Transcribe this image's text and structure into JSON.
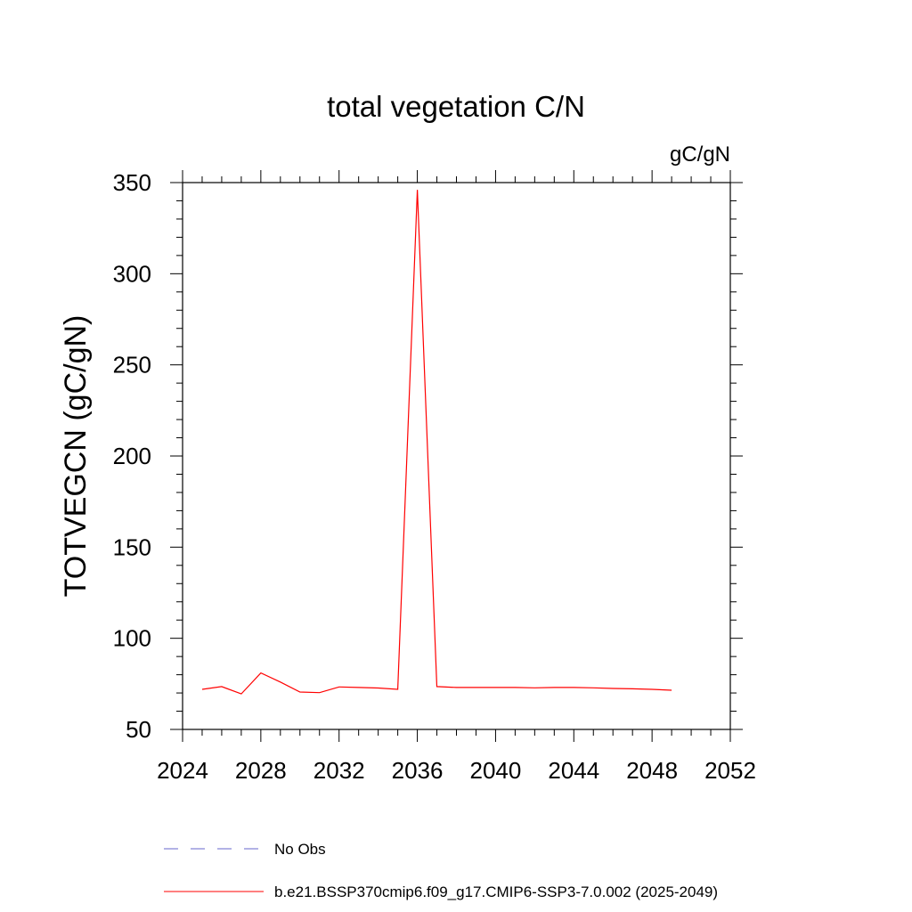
{
  "chart_data": {
    "type": "line",
    "title": "total vegetation C/N",
    "units_label": "gC/gN",
    "ylabel": "TOTVEGCN  (gC/gN)",
    "xlabel": "",
    "xlim": [
      2024,
      2052
    ],
    "ylim": [
      50,
      350
    ],
    "x_ticks": [
      2024,
      2028,
      2032,
      2036,
      2040,
      2044,
      2048,
      2052
    ],
    "y_ticks": [
      50,
      100,
      150,
      200,
      250,
      300,
      350
    ],
    "x_minor_step": 1,
    "y_minor_step": 10,
    "grid": false,
    "legend_position": "bottom",
    "series": [
      {
        "name": "b.e21.BSSP370cmip6.f09_g17.CMIP6-SSP3-7.0.002 (2025-2049)",
        "color": "#ff0000",
        "style": "solid",
        "x": [
          2025,
          2026,
          2027,
          2028,
          2029,
          2030,
          2031,
          2032,
          2033,
          2034,
          2035,
          2036,
          2037,
          2038,
          2039,
          2040,
          2041,
          2042,
          2043,
          2044,
          2045,
          2046,
          2047,
          2048,
          2049
        ],
        "y": [
          72,
          73.5,
          69.5,
          81,
          76,
          70.5,
          70.2,
          73.3,
          73,
          72.7,
          72,
          346,
          73.5,
          73,
          73,
          73,
          73,
          72.8,
          73,
          73,
          72.8,
          72.5,
          72.3,
          72,
          71.5
        ]
      }
    ],
    "legend": [
      {
        "label": "No Obs",
        "color": "#6666cc",
        "style": "dashed"
      },
      {
        "label": "b.e21.BSSP370cmip6.f09_g17.CMIP6-SSP3-7.0.002 (2025-2049)",
        "color": "#ff0000",
        "style": "solid"
      }
    ]
  }
}
